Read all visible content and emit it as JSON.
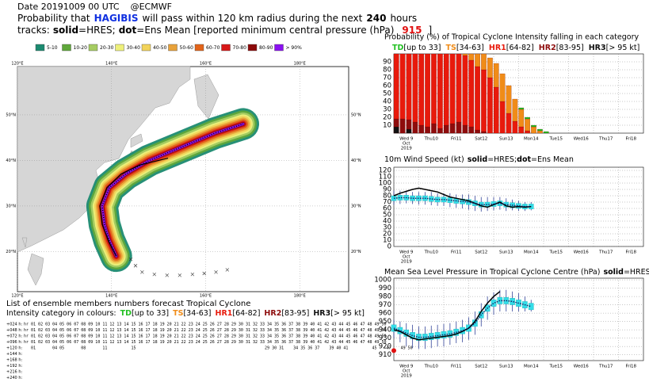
{
  "header": {
    "date": "Date 20191009 00 UTC",
    "credit": "@ECMWF",
    "line2": [
      "Probability that",
      "HAGIBIS",
      "will pass within 120 km radius during the next",
      "240",
      "hours"
    ],
    "line3": [
      "tracks:",
      "solid",
      "=HRES;",
      "dot",
      "=Ens Mean [reported minimum central pressure (hPa)",
      "915",
      "]"
    ]
  },
  "legend": [
    {
      "label": "5-10",
      "color": "#1b8a70"
    },
    {
      "label": "10-20",
      "color": "#5fa83a"
    },
    {
      "label": "20-30",
      "color": "#a6cc62"
    },
    {
      "label": "30-40",
      "color": "#eef07a"
    },
    {
      "label": "40-50",
      "color": "#f2d35a"
    },
    {
      "label": "50-60",
      "color": "#e8a23a"
    },
    {
      "label": "60-70",
      "color": "#e2641a"
    },
    {
      "label": "70-80",
      "color": "#d81818"
    },
    {
      "label": "80-90",
      "color": "#8c0a0a"
    },
    {
      "label": "> 90%",
      "color": "#8a10f0"
    }
  ],
  "map": {
    "xlim": [
      120,
      190.4
    ],
    "ylim": [
      11.2,
      60.6
    ],
    "lon_ticks": [
      {
        "value": 120,
        "label": "120°E"
      },
      {
        "value": 140,
        "label": "140°E"
      },
      {
        "value": 160,
        "label": "160°E"
      },
      {
        "value": 180,
        "label": "180°E"
      }
    ],
    "lat_ticks": [
      {
        "value": 20,
        "label": "20°N"
      },
      {
        "value": 30,
        "label": "30°N"
      },
      {
        "value": 40,
        "label": "40°N"
      },
      {
        "value": 50,
        "label": "50°N"
      }
    ],
    "hres_track": {
      "lon": [
        141,
        139.5,
        138,
        137.5,
        139,
        142,
        146,
        152
      ],
      "lat": [
        19,
        22,
        26,
        30,
        34,
        37,
        39,
        40.5
      ]
    },
    "ens_track": {
      "lon": [
        141,
        139.5,
        138.5,
        138,
        139.5,
        143,
        148,
        155,
        162,
        168
      ],
      "lat": [
        19,
        22.5,
        26,
        30,
        34,
        37,
        40,
        43,
        46,
        48
      ]
    },
    "crosses": {
      "lon": [
        144.1,
        145.1,
        146.5,
        149.1,
        151.8,
        154.5,
        157.2,
        159.7,
        162.2,
        164.6
      ],
      "lat": [
        18.3,
        16.9,
        15.5,
        15.0,
        14.8,
        14.8,
        15.0,
        15.2,
        15.5,
        16.0
      ]
    }
  },
  "members": {
    "title": "List of ensemble members numbers forecast Tropical Cyclone",
    "legend_title": "Intensity category in colours:",
    "rows": [
      {
        "label": "+024 h:",
        "color": "#d83020",
        "text": "hr 01 02 03 04 05 06 07 08 09 10 11 12 13 14 15 16 17 18 19 20 21 22 23 24 25 26 27 28 29 30 31 32 33 34 35 36 37 38 39 40 41 42 43 44 45 46 47 48 49 50"
      },
      {
        "label": "+048 h:",
        "color": "#d83020",
        "text": "hr 01 02 03 04 05 06 07 08 09 10 11 12 13 14 15 16 17 18 19 20 21 22 23 24 25 26 27 28 29 30 31 32 33 34 35 36 37 38 39 40 41 42 43 44 45 46 47 48 49 50"
      },
      {
        "label": "+072 h:",
        "color": "#d83020",
        "text": "hr 01 02 03 04 05 06 07 08 09 10 11 12 13 14 15 16 17 18 19 20 21 22 23 24 25 26 27 28 29 30 31 32 33 34 35 36 37 38 39 40 41 42 43 44 45 46 47 48 49 50"
      },
      {
        "label": "+096 h:",
        "color": "#e05a20",
        "text": "hr 01 02 03 04 05 06 07 08 09 10 11 12 13 14 15 16 17 18 19 20 21 22 23 24 25 26 27 28 29 30 31 32 33 34 35 36 37 38 39 40 41 42 43 44 45 46 47 48 49 50"
      },
      {
        "label": "+120 h:",
        "color": "#e8901a",
        "text": "   01       04 05       08       11          15                                                      29 30 31    34 35 36 37    39 40 41          45    47    49 50"
      },
      {
        "label": "+144 h:"
      },
      {
        "label": "+168 h:"
      },
      {
        "label": "+192 h:"
      },
      {
        "label": "+216 h:"
      },
      {
        "label": "+240 h:"
      }
    ]
  },
  "chart_data": [
    {
      "type": "bar",
      "title": "Probability (%) of Tropical Cyclone Intensity falling in each category",
      "xlim": [
        0,
        240
      ],
      "ylim": [
        0,
        100
      ],
      "yticks": [
        10,
        20,
        30,
        40,
        50,
        60,
        70,
        80,
        90
      ],
      "grid": true,
      "xticks": [
        {
          "value": 0,
          "label": "Wed 9"
        },
        {
          "value": 24,
          "label": "Thu10"
        },
        {
          "value": 48,
          "label": "Fri11"
        },
        {
          "value": 72,
          "label": "Sat12"
        },
        {
          "value": 96,
          "label": "Sun13"
        },
        {
          "value": 120,
          "label": "Mon14"
        },
        {
          "value": 144,
          "label": "Tue15"
        },
        {
          "value": 168,
          "label": "Wed16"
        },
        {
          "value": 192,
          "label": "Thu17"
        },
        {
          "value": 216,
          "label": "Fri18"
        }
      ],
      "x_sublabels": [
        "Oct",
        "2019"
      ],
      "highlight_tick": 4,
      "highlight_color": "#d01010",
      "x": [
        0,
        6,
        12,
        18,
        24,
        30,
        36,
        42,
        48,
        54,
        60,
        66,
        72,
        78,
        84,
        90,
        96,
        102,
        108,
        114,
        120,
        126,
        132,
        138,
        144
      ],
      "series": [
        {
          "name": "TD",
          "range": "[up to 33]",
          "color": "#22c022",
          "values": [
            0,
            0,
            0,
            0,
            0,
            0,
            0,
            0,
            0,
            0,
            0,
            0,
            0,
            0,
            0,
            0,
            0,
            0,
            0,
            0,
            2,
            2,
            2,
            2,
            2
          ]
        },
        {
          "name": "TS",
          "range": "[34-63]",
          "color": "#f08c18",
          "values": [
            0,
            0,
            0,
            0,
            0,
            0,
            0,
            0,
            0,
            0,
            0,
            2,
            8,
            16,
            20,
            25,
            30,
            35,
            35,
            28,
            22,
            15,
            8,
            3,
            0
          ]
        },
        {
          "name": "HR1",
          "range": "[64-82]",
          "color": "#e81a0c",
          "values": [
            82,
            82,
            83,
            86,
            90,
            92,
            88,
            94,
            90,
            88,
            86,
            88,
            84,
            80,
            78,
            70,
            58,
            40,
            25,
            15,
            8,
            3,
            0,
            0,
            0
          ]
        },
        {
          "name": "HR2",
          "range": "[83-95]",
          "color": "#8e0c0c",
          "values": [
            10,
            18,
            12,
            14,
            10,
            8,
            12,
            6,
            10,
            12,
            14,
            10,
            8,
            4,
            2,
            0,
            0,
            0,
            0,
            0,
            0,
            0,
            0,
            0,
            0
          ]
        },
        {
          "name": "HR3",
          "range": "[> 95 kt]",
          "color": "#111111",
          "values": [
            8,
            0,
            5,
            0,
            0,
            0,
            0,
            0,
            0,
            0,
            0,
            0,
            0,
            0,
            0,
            0,
            0,
            0,
            0,
            0,
            0,
            0,
            0,
            0,
            0
          ]
        }
      ]
    },
    {
      "type": "line",
      "title": [
        "10m Wind Speed (kt)",
        "solid",
        "=HRES;",
        "dot",
        "=Ens Mean"
      ],
      "xlim": [
        0,
        240
      ],
      "ylim": [
        0,
        125
      ],
      "yticks": [
        0,
        10,
        20,
        30,
        40,
        50,
        60,
        70,
        80,
        90,
        100,
        110,
        120
      ],
      "grid": true,
      "xticks": [
        {
          "value": 0,
          "label": "Wed 9"
        },
        {
          "value": 24,
          "label": "Thu10"
        },
        {
          "value": 48,
          "label": "Fri11"
        },
        {
          "value": 72,
          "label": "Sat12"
        },
        {
          "value": 96,
          "label": "Sun13"
        },
        {
          "value": 120,
          "label": "Mon14"
        },
        {
          "value": 144,
          "label": "Tue15"
        },
        {
          "value": 168,
          "label": "Wed16"
        },
        {
          "value": 192,
          "label": "Thu17"
        },
        {
          "value": 216,
          "label": "Fri18"
        }
      ],
      "x_sublabels": [
        "Oct",
        "2019"
      ],
      "highlight_tick": 4,
      "highlight_color": "#d01010",
      "x": [
        0,
        6,
        12,
        18,
        24,
        30,
        36,
        42,
        48,
        54,
        60,
        66,
        72,
        78,
        84,
        90,
        96,
        102,
        108,
        114,
        120,
        126,
        132
      ],
      "box_color": "#33dde8",
      "whisker_color": "#334499",
      "box_low": [
        72,
        73,
        73,
        72,
        72,
        72,
        71,
        70,
        70,
        69,
        68,
        67,
        66,
        64,
        62,
        62,
        63,
        64,
        62,
        61,
        60,
        59,
        59
      ],
      "box_high": [
        80,
        81,
        81,
        80,
        80,
        80,
        79,
        78,
        78,
        77,
        76,
        75,
        74,
        72,
        70,
        70,
        71,
        72,
        70,
        69,
        68,
        67,
        67
      ],
      "whisker_low": [
        66,
        67,
        68,
        67,
        66,
        66,
        65,
        64,
        64,
        62,
        61,
        60,
        58,
        56,
        55,
        56,
        57,
        58,
        56,
        57,
        56,
        56,
        57
      ],
      "whisker_high": [
        88,
        88,
        88,
        86,
        86,
        86,
        86,
        84,
        84,
        84,
        82,
        82,
        82,
        80,
        78,
        78,
        78,
        78,
        76,
        74,
        72,
        70,
        70
      ],
      "series": [
        {
          "style": "solid",
          "color": "#000000",
          "values": [
            80,
            84,
            87,
            90,
            92,
            90,
            88,
            86,
            82,
            78,
            76,
            74,
            72,
            68,
            64,
            62,
            66,
            70,
            64,
            62,
            63,
            62,
            63
          ]
        },
        {
          "style": "dot",
          "color": "#1a1a60",
          "values": [
            76,
            77,
            77,
            76,
            76,
            76,
            75,
            74,
            74,
            73,
            72,
            71,
            70,
            68,
            66,
            66,
            67,
            68,
            66,
            65,
            64,
            63,
            63
          ]
        }
      ]
    },
    {
      "type": "line",
      "title": [
        "Mean Sea Level Pressure in Tropical Cyclone Centre (hPa)",
        "solid",
        "=HRES;",
        "dot",
        "=Ens Mean"
      ],
      "xlim": [
        0,
        240
      ],
      "ylim": [
        903,
        1002
      ],
      "yticks": [
        910,
        920,
        930,
        940,
        950,
        960,
        970,
        980,
        990,
        1000
      ],
      "grid": true,
      "xticks": [
        {
          "value": 0,
          "label": "Wed 9"
        },
        {
          "value": 24,
          "label": "Thu10"
        },
        {
          "value": 48,
          "label": "Fri11"
        },
        {
          "value": 72,
          "label": "Sat12"
        },
        {
          "value": 96,
          "label": "Sun13"
        },
        {
          "value": 120,
          "label": "Mon14"
        },
        {
          "value": 144,
          "label": "Tue15"
        },
        {
          "value": 168,
          "label": "Wed16"
        },
        {
          "value": 192,
          "label": "Thu17"
        },
        {
          "value": 216,
          "label": "Fri18"
        }
      ],
      "x_sublabels": [
        "Oct",
        "2019"
      ],
      "highlight_tick": 4,
      "highlight_color": "#d01010",
      "x": [
        0,
        6,
        12,
        18,
        24,
        30,
        36,
        42,
        48,
        54,
        60,
        66,
        72,
        78,
        84,
        90,
        96,
        102,
        108,
        114,
        120,
        126,
        132
      ],
      "box_color": "#33dde8",
      "whisker_color": "#334499",
      "box_low": [
        938,
        935,
        932,
        929,
        927,
        927,
        928,
        929,
        930,
        931,
        933,
        935,
        938,
        944,
        954,
        962,
        968,
        971,
        971,
        970,
        968,
        966,
        964
      ],
      "box_high": [
        946,
        943,
        940,
        937,
        935,
        935,
        936,
        937,
        938,
        939,
        941,
        943,
        946,
        952,
        962,
        970,
        976,
        979,
        979,
        978,
        976,
        974,
        972
      ],
      "whisker_low": [
        930,
        925,
        920,
        918,
        917,
        917,
        918,
        920,
        920,
        922,
        924,
        925,
        928,
        934,
        944,
        952,
        958,
        962,
        962,
        962,
        962,
        962,
        962
      ],
      "whisker_high": [
        952,
        950,
        948,
        946,
        944,
        944,
        945,
        946,
        947,
        948,
        950,
        952,
        955,
        962,
        972,
        980,
        985,
        988,
        988,
        986,
        984,
        980,
        976
      ],
      "observed": {
        "x": 0,
        "value": 915,
        "color": "#e01010"
      },
      "series": [
        {
          "style": "solid",
          "color": "#000000",
          "values": [
            940,
            938,
            934,
            930,
            928,
            929,
            930,
            931,
            932,
            933,
            935,
            938,
            942,
            950,
            962,
            972,
            980,
            986,
            null,
            null,
            null,
            null,
            null
          ]
        },
        {
          "style": "dot",
          "color": "#1a1a60",
          "values": [
            942,
            939,
            936,
            933,
            931,
            931,
            932,
            933,
            934,
            935,
            937,
            939,
            942,
            948,
            958,
            966,
            972,
            975,
            975,
            974,
            972,
            970,
            968
          ]
        }
      ]
    }
  ]
}
